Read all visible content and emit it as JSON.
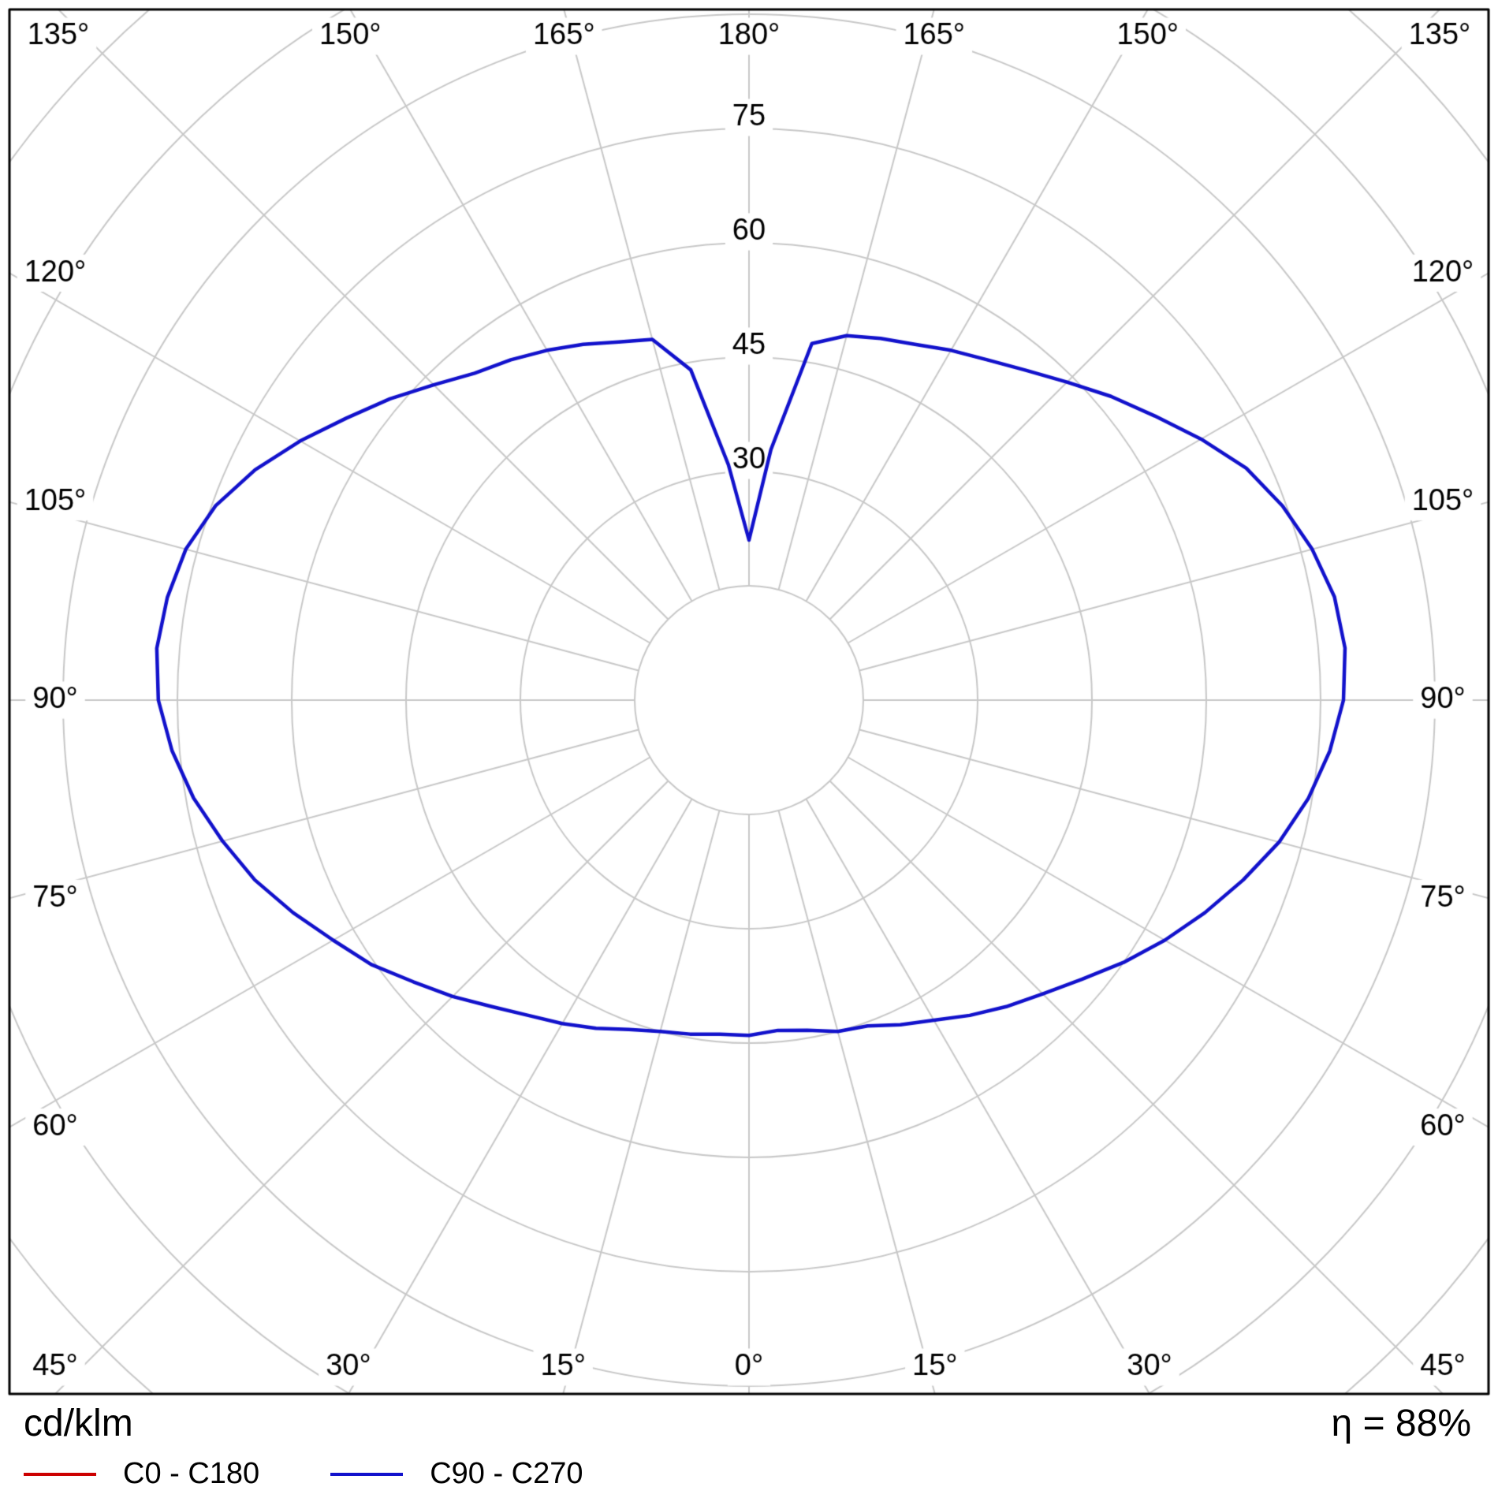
{
  "footer": {
    "units": "cd/klm",
    "efficiency": "η = 88%"
  },
  "legend": {
    "items": [
      {
        "label": "C0 - C180",
        "color": "#cc0000"
      },
      {
        "label": "C90 - C270",
        "color": "#1212cc"
      }
    ]
  },
  "chart_data": {
    "type": "polar-line",
    "description": "Luminaire polar luminous intensity distribution curve",
    "units": "cd/klm",
    "efficiency_percent": 88,
    "grid": {
      "color": "#c8c8c8",
      "ring_step": 15,
      "spoke_step_deg": 15,
      "rings": [
        15,
        30,
        45,
        60,
        75,
        90,
        105,
        120,
        135
      ],
      "ring_labels": [
        "30",
        "45",
        "60",
        "75"
      ]
    },
    "angle_labels": [
      "0°",
      "15°",
      "30°",
      "45°",
      "60°",
      "75°",
      "90°",
      "105°",
      "120°",
      "135°",
      "150°",
      "165°",
      "180°"
    ],
    "gamma_step_deg": 5,
    "gamma_range_deg": [
      0,
      180
    ],
    "series": [
      {
        "name": "C0 - C180",
        "color": "#cc0000",
        "right_half_cd_per_klm": [
          44,
          43.5,
          44,
          45,
          45.5,
          47,
          48.5,
          50.5,
          52.5,
          54.5,
          57,
          60,
          63,
          66,
          69,
          72,
          74.5,
          76.5,
          78,
          78.5,
          78,
          76.5,
          74.5,
          72,
          68.5,
          65,
          62,
          59,
          56.5,
          54.5,
          53,
          51.5,
          50.5,
          49.5,
          47.5,
          33,
          21
        ],
        "left_half_cd_per_klm": [
          44,
          44,
          44.5,
          45,
          46,
          47.5,
          49,
          50.5,
          52.5,
          55,
          57.5,
          60.5,
          63,
          66,
          69,
          71.5,
          74,
          76,
          77.5,
          78,
          77.5,
          76.5,
          74.5,
          71.5,
          68,
          64.5,
          61.5,
          58.5,
          56,
          54.5,
          53,
          51.5,
          50,
          49,
          44,
          31,
          21
        ]
      },
      {
        "name": "C90 - C270",
        "color": "#1212cc",
        "right_half_cd_per_klm": [
          44,
          43.5,
          44,
          45,
          45.5,
          47,
          48.5,
          50.5,
          52.5,
          54.5,
          57,
          60,
          63,
          66,
          69,
          72,
          74.5,
          76.5,
          78,
          78.5,
          78,
          76.5,
          74.5,
          72,
          68.5,
          65,
          62,
          59,
          56.5,
          54.5,
          53,
          51.5,
          50.5,
          49.5,
          47.5,
          33,
          21
        ],
        "left_half_cd_per_klm": [
          44,
          44,
          44.5,
          45,
          46,
          47.5,
          49,
          50.5,
          52.5,
          55,
          57.5,
          60.5,
          63,
          66,
          69,
          71.5,
          74,
          76,
          77.5,
          78,
          77.5,
          76.5,
          74.5,
          71.5,
          68,
          64.5,
          61.5,
          58.5,
          56,
          54.5,
          53,
          51.5,
          50,
          49,
          44,
          31,
          21
        ]
      }
    ]
  }
}
